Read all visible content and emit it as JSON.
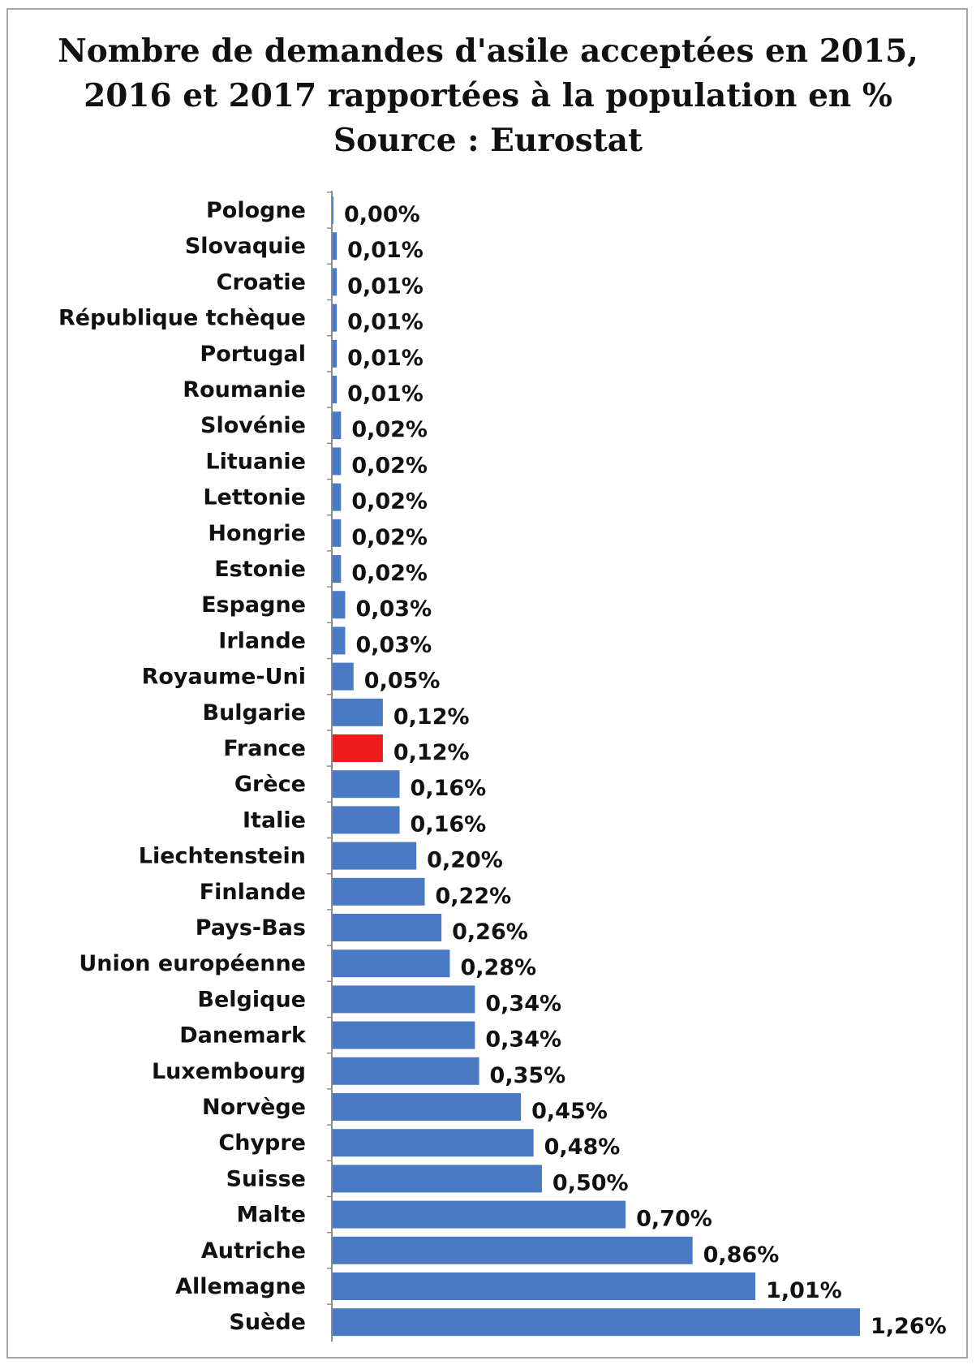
{
  "chart_data": {
    "type": "bar",
    "orientation": "horizontal",
    "title_lines": [
      "Nombre de demandes d'asile acceptées en 2015,",
      "2016 et 2017 rapportées à la population en %",
      "Source : Eurostat"
    ],
    "xlabel": "",
    "ylabel": "",
    "xlim": [
      0,
      1.26
    ],
    "grid": false,
    "legend": "none",
    "colors": {
      "default": "#4a7ac4",
      "highlight": "#ee1c1c",
      "axis": "#8c8c8c"
    },
    "highlight_category": "France",
    "categories": [
      "Pologne",
      "Slovaquie",
      "Croatie",
      "République tchèque",
      "Portugal",
      "Roumanie",
      "Slovénie",
      "Lituanie",
      "Lettonie",
      "Hongrie",
      "Estonie",
      "Espagne",
      "Irlande",
      "Royaume-Uni",
      "Bulgarie",
      "France",
      "Grèce",
      "Italie",
      "Liechtenstein",
      "Finlande",
      "Pays-Bas",
      "Union européenne",
      "Belgique",
      "Danemark",
      "Luxembourg",
      "Norvège",
      "Chypre",
      "Suisse",
      "Malte",
      "Autriche",
      "Allemagne",
      "Suède"
    ],
    "values": [
      0.0,
      0.01,
      0.01,
      0.01,
      0.01,
      0.01,
      0.02,
      0.02,
      0.02,
      0.02,
      0.02,
      0.03,
      0.03,
      0.05,
      0.12,
      0.12,
      0.16,
      0.16,
      0.2,
      0.22,
      0.26,
      0.28,
      0.34,
      0.34,
      0.35,
      0.45,
      0.48,
      0.5,
      0.7,
      0.86,
      1.01,
      1.26
    ],
    "value_labels": [
      "0,00%",
      "0,01%",
      "0,01%",
      "0,01%",
      "0,01%",
      "0,01%",
      "0,02%",
      "0,02%",
      "0,02%",
      "0,02%",
      "0,02%",
      "0,03%",
      "0,03%",
      "0,05%",
      "0,12%",
      "0,12%",
      "0,16%",
      "0,16%",
      "0,20%",
      "0,22%",
      "0,26%",
      "0,28%",
      "0,34%",
      "0,34%",
      "0,35%",
      "0,45%",
      "0,48%",
      "0,50%",
      "0,70%",
      "0,86%",
      "1,01%",
      "1,26%"
    ]
  }
}
